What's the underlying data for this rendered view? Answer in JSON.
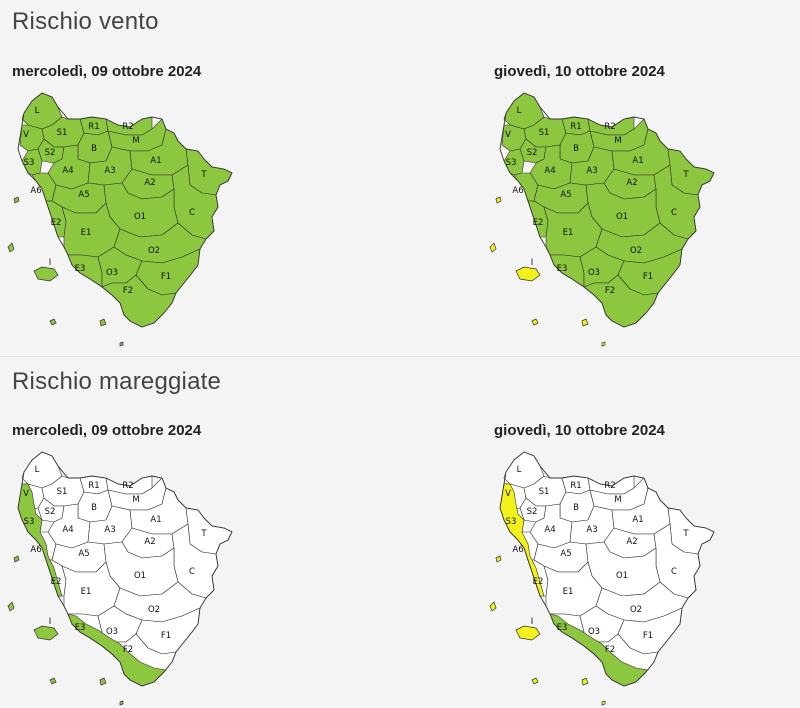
{
  "sections": [
    {
      "id": "vento",
      "title": "Rischio vento",
      "days": [
        {
          "date": "mercoledì, 09 ottobre 2024",
          "map": "vento-day1"
        },
        {
          "date": "giovedì, 10 ottobre 2024",
          "map": "vento-day2"
        }
      ]
    },
    {
      "id": "mareggiate",
      "title": "Rischio mareggiate",
      "days": [
        {
          "date": "mercoledì, 09 ottobre 2024",
          "map": "mare-day1"
        },
        {
          "date": "giovedì, 10 ottobre 2024",
          "map": "mare-day2"
        }
      ]
    }
  ],
  "colors": {
    "green": "#8dc63f",
    "yellow": "#f2f21a",
    "white": "#ffffff",
    "border": "#333333"
  },
  "zone_labels": [
    "L",
    "V",
    "S1",
    "S2",
    "S3",
    "R1",
    "R2",
    "B",
    "M",
    "A4",
    "A3",
    "A1",
    "T",
    "A2",
    "A6",
    "A5",
    "C",
    "O1",
    "E2",
    "E1",
    "O2",
    "I",
    "E3",
    "O3",
    "F1",
    "F2"
  ],
  "maps": {
    "vento-day1": {
      "inland": "green",
      "coast": "green",
      "islands": "green"
    },
    "vento-day2": {
      "inland": "green",
      "coast": "green",
      "islands": "yellow"
    },
    "mare-day1": {
      "inland": "white",
      "coast_north": "green",
      "coast_south": "green",
      "islands": "green"
    },
    "mare-day2": {
      "inland": "white",
      "coast_north": "yellow",
      "coast_south": "green",
      "islands": "yellow"
    }
  }
}
